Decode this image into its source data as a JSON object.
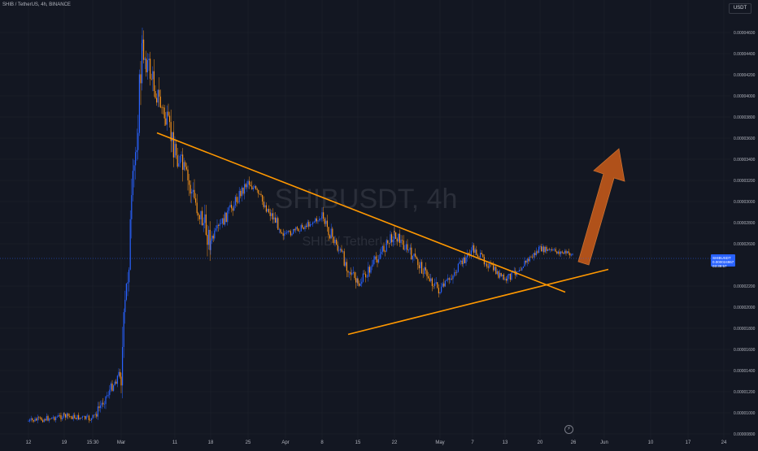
{
  "header": {
    "symbol_line": "SHIB / TetherUS, 4h, BINANCE",
    "currency_badge": "USDT"
  },
  "watermark": {
    "ticker": "SHIBUSDT, 4h",
    "subtitle": "SHIB / TetherUS"
  },
  "price_tag": {
    "symbol": "SHIBUSDT",
    "price": "0.000024967",
    "countdown": "03:39:57"
  },
  "lightning_icon": "lightning-icon",
  "colors": {
    "background": "#131722",
    "up_candle": "#2962ff",
    "down_candle": "#f7931a",
    "trendline": "#ff9800",
    "arrow": "#c1581a",
    "price_tag": "#2962ff"
  },
  "chart_data": {
    "type": "candlestick",
    "title": "",
    "xlabel": "",
    "ylabel": "",
    "y_unit": "USDT",
    "y_ticks": [
      "0.00000800",
      "0.00001000",
      "0.00001200",
      "0.00001400",
      "0.00001600",
      "0.00001800",
      "0.00002000",
      "0.00002200",
      "0.00002600",
      "0.00002800",
      "0.00003000",
      "0.00003200",
      "0.00003400",
      "0.00003600",
      "0.00003800",
      "0.00004000",
      "0.00004200",
      "0.00004400",
      "0.00004600"
    ],
    "x_ticks": [
      "12",
      "19",
      "15:30",
      "Mar",
      "11",
      "18",
      "25",
      "Apr",
      "8",
      "15",
      "22",
      "May",
      "7",
      "13",
      "20",
      "26",
      "Jun",
      "10",
      "17",
      "24"
    ],
    "grid": true,
    "approx_path": [
      {
        "x": "12",
        "y": 9.2e-06
      },
      {
        "x": "19",
        "y": 9.7e-06
      },
      {
        "x": "15:30",
        "y": 9.4e-06
      },
      {
        "x": "Mar",
        "y": 1.4e-05
      },
      {
        "x": "Mar",
        "y": 4.45e-05
      },
      {
        "x": "11",
        "y": 3.5e-05
      },
      {
        "x": "18",
        "y": 2.62e-05
      },
      {
        "x": "25",
        "y": 3.2e-05
      },
      {
        "x": "Apr",
        "y": 2.68e-05
      },
      {
        "x": "8",
        "y": 2.85e-05
      },
      {
        "x": "15",
        "y": 2.2e-05
      },
      {
        "x": "22",
        "y": 2.7e-05
      },
      {
        "x": "May",
        "y": 2.15e-05
      },
      {
        "x": "7",
        "y": 2.55e-05
      },
      {
        "x": "13",
        "y": 2.25e-05
      },
      {
        "x": "20",
        "y": 2.55e-05
      },
      {
        "x": "26",
        "y": 2.5e-05
      }
    ],
    "annotations": [
      {
        "type": "descending-trendline",
        "from": {
          "x": "Mar",
          "y": 3.65e-05
        },
        "to": {
          "x": "26",
          "y": 2.25e-05
        }
      },
      {
        "type": "ascending-trendline",
        "from": {
          "x": "15",
          "y": 1.85e-05
        },
        "to": {
          "x": "26",
          "y": 2.45e-05
        }
      },
      {
        "type": "breakout-arrow",
        "direction": "up"
      }
    ]
  }
}
